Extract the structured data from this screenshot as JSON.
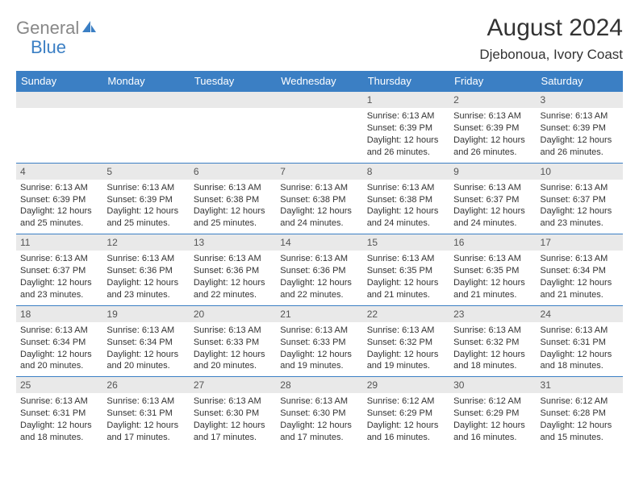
{
  "colors": {
    "header_bg": "#3b7fc4",
    "header_text": "#ffffff",
    "daynum_bg": "#e9e9e9",
    "body_text": "#333333",
    "logo_gray": "#888888",
    "logo_blue": "#3b7fc4",
    "week_border": "#3b7fc4"
  },
  "logo": {
    "part1": "General",
    "part2": "Blue"
  },
  "title": "August 2024",
  "location": "Djebonoua, Ivory Coast",
  "weekdays": [
    "Sunday",
    "Monday",
    "Tuesday",
    "Wednesday",
    "Thursday",
    "Friday",
    "Saturday"
  ],
  "weeks": [
    [
      {
        "n": "",
        "sunrise": "",
        "sunset": "",
        "daylight": ""
      },
      {
        "n": "",
        "sunrise": "",
        "sunset": "",
        "daylight": ""
      },
      {
        "n": "",
        "sunrise": "",
        "sunset": "",
        "daylight": ""
      },
      {
        "n": "",
        "sunrise": "",
        "sunset": "",
        "daylight": ""
      },
      {
        "n": "1",
        "sunrise": "Sunrise: 6:13 AM",
        "sunset": "Sunset: 6:39 PM",
        "daylight": "Daylight: 12 hours and 26 minutes."
      },
      {
        "n": "2",
        "sunrise": "Sunrise: 6:13 AM",
        "sunset": "Sunset: 6:39 PM",
        "daylight": "Daylight: 12 hours and 26 minutes."
      },
      {
        "n": "3",
        "sunrise": "Sunrise: 6:13 AM",
        "sunset": "Sunset: 6:39 PM",
        "daylight": "Daylight: 12 hours and 26 minutes."
      }
    ],
    [
      {
        "n": "4",
        "sunrise": "Sunrise: 6:13 AM",
        "sunset": "Sunset: 6:39 PM",
        "daylight": "Daylight: 12 hours and 25 minutes."
      },
      {
        "n": "5",
        "sunrise": "Sunrise: 6:13 AM",
        "sunset": "Sunset: 6:39 PM",
        "daylight": "Daylight: 12 hours and 25 minutes."
      },
      {
        "n": "6",
        "sunrise": "Sunrise: 6:13 AM",
        "sunset": "Sunset: 6:38 PM",
        "daylight": "Daylight: 12 hours and 25 minutes."
      },
      {
        "n": "7",
        "sunrise": "Sunrise: 6:13 AM",
        "sunset": "Sunset: 6:38 PM",
        "daylight": "Daylight: 12 hours and 24 minutes."
      },
      {
        "n": "8",
        "sunrise": "Sunrise: 6:13 AM",
        "sunset": "Sunset: 6:38 PM",
        "daylight": "Daylight: 12 hours and 24 minutes."
      },
      {
        "n": "9",
        "sunrise": "Sunrise: 6:13 AM",
        "sunset": "Sunset: 6:37 PM",
        "daylight": "Daylight: 12 hours and 24 minutes."
      },
      {
        "n": "10",
        "sunrise": "Sunrise: 6:13 AM",
        "sunset": "Sunset: 6:37 PM",
        "daylight": "Daylight: 12 hours and 23 minutes."
      }
    ],
    [
      {
        "n": "11",
        "sunrise": "Sunrise: 6:13 AM",
        "sunset": "Sunset: 6:37 PM",
        "daylight": "Daylight: 12 hours and 23 minutes."
      },
      {
        "n": "12",
        "sunrise": "Sunrise: 6:13 AM",
        "sunset": "Sunset: 6:36 PM",
        "daylight": "Daylight: 12 hours and 23 minutes."
      },
      {
        "n": "13",
        "sunrise": "Sunrise: 6:13 AM",
        "sunset": "Sunset: 6:36 PM",
        "daylight": "Daylight: 12 hours and 22 minutes."
      },
      {
        "n": "14",
        "sunrise": "Sunrise: 6:13 AM",
        "sunset": "Sunset: 6:36 PM",
        "daylight": "Daylight: 12 hours and 22 minutes."
      },
      {
        "n": "15",
        "sunrise": "Sunrise: 6:13 AM",
        "sunset": "Sunset: 6:35 PM",
        "daylight": "Daylight: 12 hours and 21 minutes."
      },
      {
        "n": "16",
        "sunrise": "Sunrise: 6:13 AM",
        "sunset": "Sunset: 6:35 PM",
        "daylight": "Daylight: 12 hours and 21 minutes."
      },
      {
        "n": "17",
        "sunrise": "Sunrise: 6:13 AM",
        "sunset": "Sunset: 6:34 PM",
        "daylight": "Daylight: 12 hours and 21 minutes."
      }
    ],
    [
      {
        "n": "18",
        "sunrise": "Sunrise: 6:13 AM",
        "sunset": "Sunset: 6:34 PM",
        "daylight": "Daylight: 12 hours and 20 minutes."
      },
      {
        "n": "19",
        "sunrise": "Sunrise: 6:13 AM",
        "sunset": "Sunset: 6:34 PM",
        "daylight": "Daylight: 12 hours and 20 minutes."
      },
      {
        "n": "20",
        "sunrise": "Sunrise: 6:13 AM",
        "sunset": "Sunset: 6:33 PM",
        "daylight": "Daylight: 12 hours and 20 minutes."
      },
      {
        "n": "21",
        "sunrise": "Sunrise: 6:13 AM",
        "sunset": "Sunset: 6:33 PM",
        "daylight": "Daylight: 12 hours and 19 minutes."
      },
      {
        "n": "22",
        "sunrise": "Sunrise: 6:13 AM",
        "sunset": "Sunset: 6:32 PM",
        "daylight": "Daylight: 12 hours and 19 minutes."
      },
      {
        "n": "23",
        "sunrise": "Sunrise: 6:13 AM",
        "sunset": "Sunset: 6:32 PM",
        "daylight": "Daylight: 12 hours and 18 minutes."
      },
      {
        "n": "24",
        "sunrise": "Sunrise: 6:13 AM",
        "sunset": "Sunset: 6:31 PM",
        "daylight": "Daylight: 12 hours and 18 minutes."
      }
    ],
    [
      {
        "n": "25",
        "sunrise": "Sunrise: 6:13 AM",
        "sunset": "Sunset: 6:31 PM",
        "daylight": "Daylight: 12 hours and 18 minutes."
      },
      {
        "n": "26",
        "sunrise": "Sunrise: 6:13 AM",
        "sunset": "Sunset: 6:31 PM",
        "daylight": "Daylight: 12 hours and 17 minutes."
      },
      {
        "n": "27",
        "sunrise": "Sunrise: 6:13 AM",
        "sunset": "Sunset: 6:30 PM",
        "daylight": "Daylight: 12 hours and 17 minutes."
      },
      {
        "n": "28",
        "sunrise": "Sunrise: 6:13 AM",
        "sunset": "Sunset: 6:30 PM",
        "daylight": "Daylight: 12 hours and 17 minutes."
      },
      {
        "n": "29",
        "sunrise": "Sunrise: 6:12 AM",
        "sunset": "Sunset: 6:29 PM",
        "daylight": "Daylight: 12 hours and 16 minutes."
      },
      {
        "n": "30",
        "sunrise": "Sunrise: 6:12 AM",
        "sunset": "Sunset: 6:29 PM",
        "daylight": "Daylight: 12 hours and 16 minutes."
      },
      {
        "n": "31",
        "sunrise": "Sunrise: 6:12 AM",
        "sunset": "Sunset: 6:28 PM",
        "daylight": "Daylight: 12 hours and 15 minutes."
      }
    ]
  ]
}
